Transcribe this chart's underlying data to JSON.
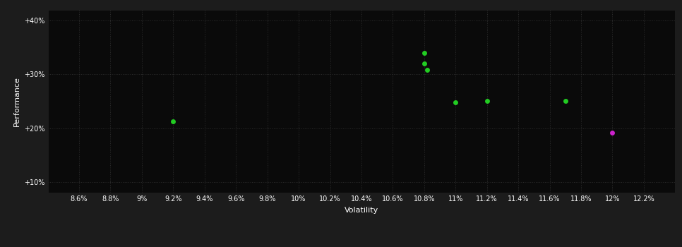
{
  "background_color": "#1c1c1c",
  "plot_bg_color": "#0a0a0a",
  "grid_color": "#2d2d2d",
  "text_color": "#ffffff",
  "xlabel": "Volatility",
  "ylabel": "Performance",
  "xlim": [
    0.084,
    0.124
  ],
  "ylim": [
    0.08,
    0.42
  ],
  "xticks": [
    0.086,
    0.088,
    0.09,
    0.092,
    0.094,
    0.096,
    0.098,
    0.1,
    0.102,
    0.104,
    0.106,
    0.108,
    0.11,
    0.112,
    0.114,
    0.116,
    0.118,
    0.12,
    0.122
  ],
  "yticks": [
    0.1,
    0.2,
    0.3,
    0.4
  ],
  "ytick_labels": [
    "+10%",
    "+20%",
    "+30%",
    "+40%"
  ],
  "xtick_labels": [
    "8.6%",
    "8.8%",
    "9%",
    "9.2%",
    "9.4%",
    "9.6%",
    "9.8%",
    "10%",
    "10.2%",
    "10.4%",
    "10.6%",
    "10.8%",
    "11%",
    "11.2%",
    "11.4%",
    "11.6%",
    "11.8%",
    "12%",
    "12.2%"
  ],
  "green_points": [
    [
      0.108,
      0.34
    ],
    [
      0.108,
      0.32
    ],
    [
      0.1082,
      0.308
    ],
    [
      0.11,
      0.248
    ],
    [
      0.112,
      0.25
    ],
    [
      0.117,
      0.25
    ],
    [
      0.092,
      0.212
    ]
  ],
  "magenta_points": [
    [
      0.12,
      0.192
    ]
  ],
  "green_color": "#22cc22",
  "magenta_color": "#cc22cc",
  "marker_size": 25,
  "font_size_ticks": 7,
  "font_size_label": 8
}
